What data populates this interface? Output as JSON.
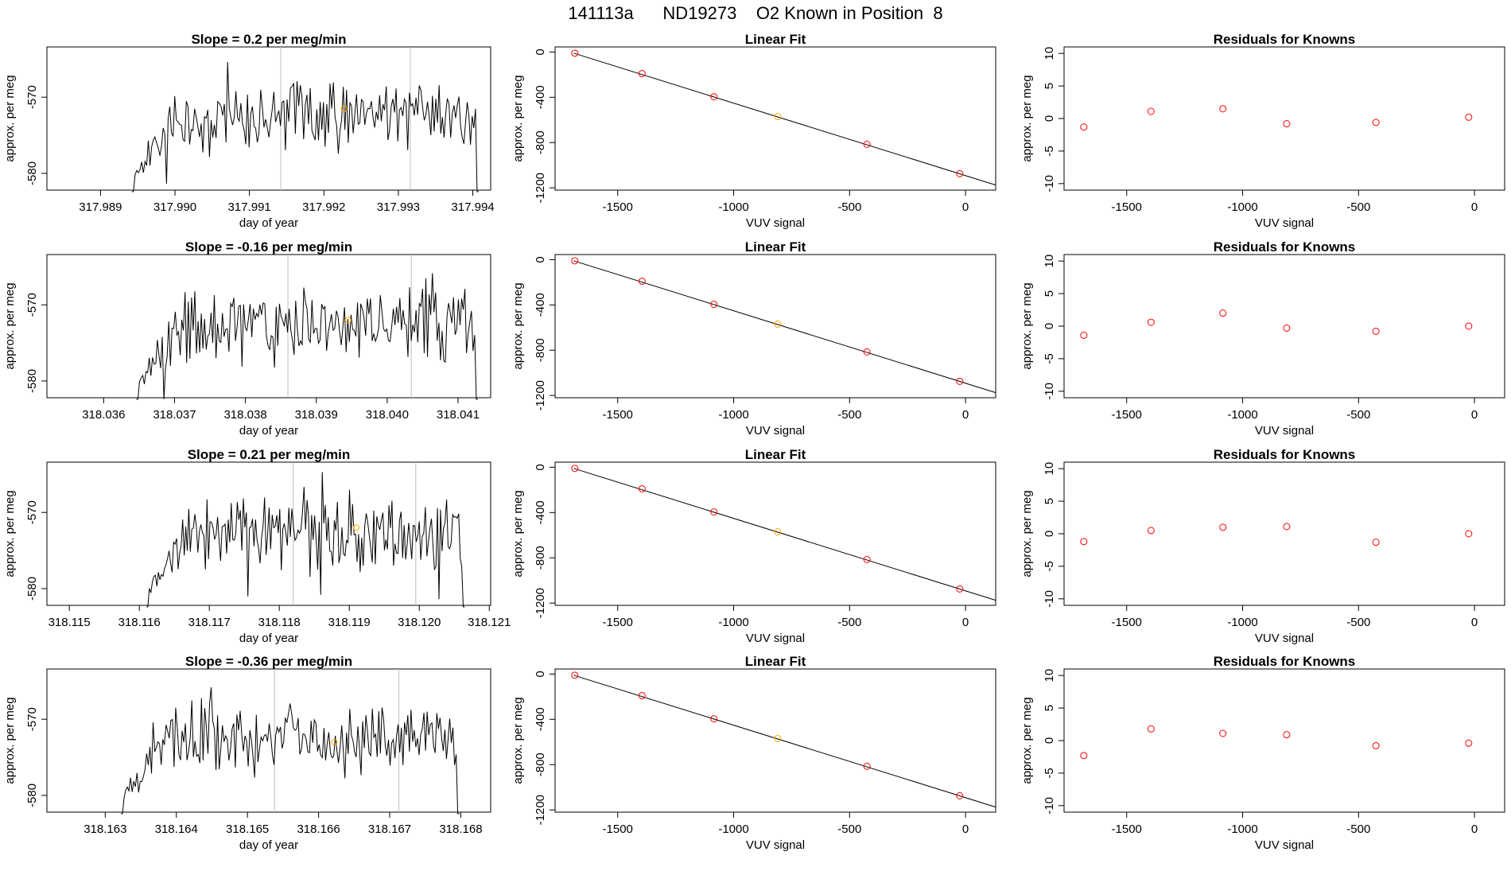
{
  "figure_title": "141113a      ND19273    O2 Known in Position  8",
  "colors": {
    "line": "#000000",
    "frame": "#000000",
    "vline": "#bebebe",
    "known": "#ff0000",
    "unknown": "#ffa500"
  },
  "chart_data": [
    {
      "type": "line",
      "title": "Slope =  0.2  per meg/min",
      "xlabel": "day of year",
      "ylabel": "approx. per meg",
      "xlim": [
        317.98828,
        317.99424
      ],
      "ylim": [
        -582.2,
        -563.4
      ],
      "xticks": [
        317.989,
        317.99,
        317.991,
        317.992,
        317.993,
        317.994
      ],
      "xtick_labels": [
        "317.989",
        "317.990",
        "317.991",
        "317.992",
        "317.993",
        "317.994"
      ],
      "yticks": [
        -580,
        -570
      ],
      "ytick_labels": [
        "-580",
        "-570"
      ],
      "vlines": [
        317.99142,
        317.99316
      ],
      "highlight": {
        "x": 317.99227,
        "y": -571.5
      },
      "series_start": 317.98942,
      "series_end": 317.99408,
      "seed": 11
    },
    {
      "type": "scatter",
      "title": "Linear Fit",
      "xlabel": "VUV signal",
      "ylabel": "approx. per meg",
      "xlim": [
        -1770,
        130
      ],
      "ylim": [
        -1220,
        45
      ],
      "xticks": [
        -1500,
        -1000,
        -500,
        0
      ],
      "xtick_labels": [
        "-1500",
        "-1000",
        "-500",
        "0"
      ],
      "yticks": [
        0,
        -400,
        -800,
        -1200
      ],
      "ytick_labels": [
        "0",
        "-400",
        "-800",
        "-1200"
      ],
      "fit_line": {
        "x": [
          -1690,
          130
        ],
        "y": [
          -10,
          -1175
        ]
      },
      "points": [
        {
          "x": -1685,
          "y": -10,
          "kind": "known"
        },
        {
          "x": -1395,
          "y": -190,
          "kind": "known"
        },
        {
          "x": -1085,
          "y": -395,
          "kind": "known"
        },
        {
          "x": -810,
          "y": -570,
          "kind": "unknown"
        },
        {
          "x": -425,
          "y": -815,
          "kind": "known"
        },
        {
          "x": -25,
          "y": -1075,
          "kind": "known"
        }
      ]
    },
    {
      "type": "scatter",
      "title": "Residuals for Knowns",
      "xlabel": "VUV signal",
      "ylabel": "approx. per meg",
      "xlim": [
        -1770,
        130
      ],
      "ylim": [
        -11,
        11
      ],
      "xticks": [
        -1500,
        -1000,
        -500,
        0
      ],
      "xtick_labels": [
        "-1500",
        "-1000",
        "-500",
        "0"
      ],
      "yticks": [
        -10,
        -5,
        0,
        5,
        10
      ],
      "ytick_labels": [
        "-10",
        "-5",
        "0",
        "5",
        "10"
      ],
      "points": [
        {
          "x": -1685,
          "y": -1.3
        },
        {
          "x": -1395,
          "y": 1.1
        },
        {
          "x": -1085,
          "y": 1.5
        },
        {
          "x": -810,
          "y": -0.8
        },
        {
          "x": -425,
          "y": -0.6
        },
        {
          "x": -25,
          "y": 0.2
        }
      ]
    },
    {
      "type": "line",
      "title": "Slope =  -0.16  per meg/min",
      "xlabel": "day of year",
      "ylabel": "approx. per meg",
      "xlim": [
        318.0352,
        318.04146
      ],
      "ylim": [
        -582.2,
        -563.4
      ],
      "xticks": [
        318.036,
        318.037,
        318.038,
        318.039,
        318.04,
        318.041
      ],
      "xtick_labels": [
        "318.036",
        "318.037",
        "318.038",
        "318.039",
        "318.040",
        "318.041"
      ],
      "yticks": [
        -580,
        -570
      ],
      "ytick_labels": [
        "-580",
        "-570"
      ],
      "vlines": [
        318.0386,
        318.04034
      ],
      "highlight": {
        "x": 318.03945,
        "y": -572.0
      },
      "series_start": 318.03646,
      "series_end": 318.04128,
      "seed": 23
    },
    {
      "type": "scatter",
      "title": "Linear Fit",
      "xlabel": "VUV signal",
      "ylabel": "approx. per meg",
      "xlim": [
        -1770,
        130
      ],
      "ylim": [
        -1220,
        45
      ],
      "xticks": [
        -1500,
        -1000,
        -500,
        0
      ],
      "xtick_labels": [
        "-1500",
        "-1000",
        "-500",
        "0"
      ],
      "yticks": [
        0,
        -400,
        -800,
        -1200
      ],
      "ytick_labels": [
        "0",
        "-400",
        "-800",
        "-1200"
      ],
      "fit_line": {
        "x": [
          -1690,
          130
        ],
        "y": [
          -10,
          -1175
        ]
      },
      "points": [
        {
          "x": -1685,
          "y": -10,
          "kind": "known"
        },
        {
          "x": -1395,
          "y": -190,
          "kind": "known"
        },
        {
          "x": -1085,
          "y": -395,
          "kind": "known"
        },
        {
          "x": -810,
          "y": -570,
          "kind": "unknown"
        },
        {
          "x": -425,
          "y": -815,
          "kind": "known"
        },
        {
          "x": -25,
          "y": -1075,
          "kind": "known"
        }
      ]
    },
    {
      "type": "scatter",
      "title": "Residuals for Knowns",
      "xlabel": "VUV signal",
      "ylabel": "approx. per meg",
      "xlim": [
        -1770,
        130
      ],
      "ylim": [
        -11,
        11
      ],
      "xticks": [
        -1500,
        -1000,
        -500,
        0
      ],
      "xtick_labels": [
        "-1500",
        "-1000",
        "-500",
        "0"
      ],
      "yticks": [
        -10,
        -5,
        0,
        5,
        10
      ],
      "ytick_labels": [
        "-10",
        "-5",
        "0",
        "5",
        "10"
      ],
      "points": [
        {
          "x": -1685,
          "y": -1.4
        },
        {
          "x": -1395,
          "y": 0.6
        },
        {
          "x": -1085,
          "y": 2.0
        },
        {
          "x": -810,
          "y": -0.3
        },
        {
          "x": -425,
          "y": -0.8
        },
        {
          "x": -25,
          "y": 0.0
        }
      ]
    },
    {
      "type": "line",
      "title": "Slope =  0.21  per meg/min",
      "xlabel": "day of year",
      "ylabel": "approx. per meg",
      "xlim": [
        318.11468,
        318.12102
      ],
      "ylim": [
        -582.2,
        -563.4
      ],
      "xticks": [
        318.115,
        318.116,
        318.117,
        318.118,
        318.119,
        318.12,
        318.121
      ],
      "xtick_labels": [
        "318.115",
        "318.116",
        "318.117",
        "318.118",
        "318.119",
        "318.120",
        "318.121"
      ],
      "yticks": [
        -580,
        -570
      ],
      "ytick_labels": [
        "-580",
        "-570"
      ],
      "vlines": [
        318.1182,
        318.11995
      ],
      "highlight": {
        "x": 318.1191,
        "y": -572.0
      },
      "series_start": 318.1161,
      "series_end": 318.12065,
      "seed": 37
    },
    {
      "type": "scatter",
      "title": "Linear Fit",
      "xlabel": "VUV signal",
      "ylabel": "approx. per meg",
      "xlim": [
        -1770,
        130
      ],
      "ylim": [
        -1220,
        45
      ],
      "xticks": [
        -1500,
        -1000,
        -500,
        0
      ],
      "xtick_labels": [
        "-1500",
        "-1000",
        "-500",
        "0"
      ],
      "yticks": [
        0,
        -400,
        -800,
        -1200
      ],
      "ytick_labels": [
        "0",
        "-400",
        "-800",
        "-1200"
      ],
      "fit_line": {
        "x": [
          -1690,
          130
        ],
        "y": [
          -10,
          -1175
        ]
      },
      "points": [
        {
          "x": -1685,
          "y": -10,
          "kind": "known"
        },
        {
          "x": -1395,
          "y": -190,
          "kind": "known"
        },
        {
          "x": -1085,
          "y": -395,
          "kind": "known"
        },
        {
          "x": -810,
          "y": -570,
          "kind": "unknown"
        },
        {
          "x": -425,
          "y": -815,
          "kind": "known"
        },
        {
          "x": -25,
          "y": -1075,
          "kind": "known"
        }
      ]
    },
    {
      "type": "scatter",
      "title": "Residuals for Knowns",
      "xlabel": "VUV signal",
      "ylabel": "approx. per meg",
      "xlim": [
        -1770,
        130
      ],
      "ylim": [
        -11,
        11
      ],
      "xticks": [
        -1500,
        -1000,
        -500,
        0
      ],
      "xtick_labels": [
        "-1500",
        "-1000",
        "-500",
        "0"
      ],
      "yticks": [
        -10,
        -5,
        0,
        5,
        10
      ],
      "ytick_labels": [
        "-10",
        "-5",
        "0",
        "5",
        "10"
      ],
      "points": [
        {
          "x": -1685,
          "y": -1.2
        },
        {
          "x": -1395,
          "y": 0.5
        },
        {
          "x": -1085,
          "y": 1.0
        },
        {
          "x": -810,
          "y": 1.1
        },
        {
          "x": -425,
          "y": -1.3
        },
        {
          "x": -25,
          "y": 0.0
        }
      ]
    },
    {
      "type": "line",
      "title": "Slope =  -0.36  per meg/min",
      "xlabel": "day of year",
      "ylabel": "approx. per meg",
      "xlim": [
        318.16218,
        318.16842
      ],
      "ylim": [
        -582.2,
        -563.4
      ],
      "xticks": [
        318.163,
        318.164,
        318.165,
        318.166,
        318.167,
        318.168
      ],
      "xtick_labels": [
        "318.163",
        "318.164",
        "318.165",
        "318.166",
        "318.167",
        "318.168"
      ],
      "yticks": [
        -580,
        -570
      ],
      "ytick_labels": [
        "-580",
        "-570"
      ],
      "vlines": [
        318.16538,
        318.16713
      ],
      "highlight": {
        "x": 318.16622,
        "y": -573.0
      },
      "series_start": 318.16322,
      "series_end": 318.16798,
      "seed": 53
    },
    {
      "type": "scatter",
      "title": "Linear Fit",
      "xlabel": "VUV signal",
      "ylabel": "approx. per meg",
      "xlim": [
        -1770,
        130
      ],
      "ylim": [
        -1220,
        45
      ],
      "xticks": [
        -1500,
        -1000,
        -500,
        0
      ],
      "xtick_labels": [
        "-1500",
        "-1000",
        "-500",
        "0"
      ],
      "yticks": [
        0,
        -400,
        -800,
        -1200
      ],
      "ytick_labels": [
        "0",
        "-400",
        "-800",
        "-1200"
      ],
      "fit_line": {
        "x": [
          -1690,
          130
        ],
        "y": [
          -10,
          -1175
        ]
      },
      "points": [
        {
          "x": -1685,
          "y": -10,
          "kind": "known"
        },
        {
          "x": -1395,
          "y": -190,
          "kind": "known"
        },
        {
          "x": -1085,
          "y": -395,
          "kind": "known"
        },
        {
          "x": -810,
          "y": -570,
          "kind": "unknown"
        },
        {
          "x": -425,
          "y": -815,
          "kind": "known"
        },
        {
          "x": -25,
          "y": -1075,
          "kind": "known"
        }
      ]
    },
    {
      "type": "scatter",
      "title": "Residuals for Knowns",
      "xlabel": "VUV signal",
      "ylabel": "approx. per meg",
      "xlim": [
        -1770,
        130
      ],
      "ylim": [
        -11,
        11
      ],
      "xticks": [
        -1500,
        -1000,
        -500,
        0
      ],
      "xtick_labels": [
        "-1500",
        "-1000",
        "-500",
        "0"
      ],
      "yticks": [
        -10,
        -5,
        0,
        5,
        10
      ],
      "ytick_labels": [
        "-10",
        "-5",
        "0",
        "5",
        "10"
      ],
      "points": [
        {
          "x": -1685,
          "y": -2.3
        },
        {
          "x": -1395,
          "y": 1.8
        },
        {
          "x": -1085,
          "y": 1.1
        },
        {
          "x": -810,
          "y": 0.9
        },
        {
          "x": -425,
          "y": -0.8
        },
        {
          "x": -25,
          "y": -0.4
        }
      ]
    }
  ]
}
